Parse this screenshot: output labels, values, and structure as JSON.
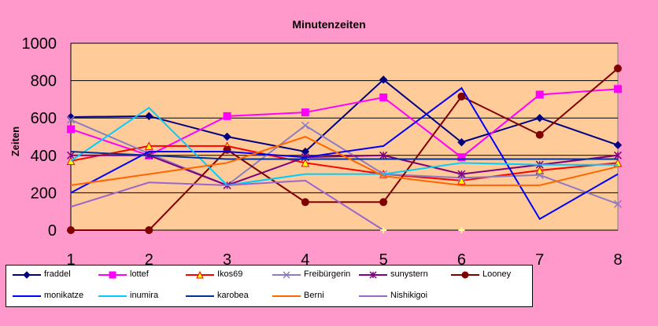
{
  "chart_data": {
    "type": "line",
    "title": "Minutenzeiten",
    "ylabel": "Zeiten",
    "xlabel": "",
    "categories": [
      "1",
      "2",
      "3",
      "4",
      "5",
      "6",
      "7",
      "8"
    ],
    "ylim": [
      0,
      1000
    ],
    "yticks": [
      "0",
      "200",
      "400",
      "600",
      "800",
      "1000"
    ],
    "grid": true,
    "legend_position": "bottom",
    "plot_background": "#ffcc99",
    "page_background": "#ff99cc",
    "series": [
      {
        "name": "fraddel",
        "color": "#000080",
        "marker": "diamond",
        "values": [
          605,
          610,
          500,
          420,
          805,
          470,
          600,
          455
        ]
      },
      {
        "name": "lottef",
        "color": "#ff00ff",
        "marker": "square",
        "values": [
          540,
          400,
          610,
          630,
          710,
          390,
          725,
          755
        ]
      },
      {
        "name": "Ikos69",
        "color": "#ff0000",
        "marker": "triangle",
        "values": [
          370,
          450,
          450,
          360,
          300,
          265,
          320,
          360
        ]
      },
      {
        "name": "Freibürgerin",
        "color": "#8e7cc3",
        "marker": "x",
        "values": [
          590,
          410,
          240,
          560,
          300,
          280,
          295,
          140
        ]
      },
      {
        "name": "sunystern",
        "color": "#800080",
        "marker": "star",
        "values": [
          400,
          400,
          240,
          390,
          400,
          300,
          350,
          400
        ]
      },
      {
        "name": "Looney",
        "color": "#800000",
        "marker": "circle",
        "values": [
          0,
          0,
          430,
          150,
          150,
          715,
          510,
          865
        ]
      },
      {
        "name": "monikatze",
        "color": "#0000ff",
        "marker": "none",
        "values": [
          200,
          420,
          420,
          390,
          450,
          760,
          60,
          300
        ]
      },
      {
        "name": "inumira",
        "color": "#00ccff",
        "marker": "none",
        "values": [
          370,
          655,
          240,
          300,
          300,
          360,
          350,
          350
        ]
      },
      {
        "name": "karobea",
        "color": "#003399",
        "marker": "none",
        "values": [
          420,
          400,
          380,
          380,
          380,
          380,
          380,
          380
        ]
      },
      {
        "name": "Berni",
        "color": "#ff6600",
        "marker": "none",
        "values": [
          240,
          300,
          360,
          500,
          290,
          240,
          240,
          340
        ]
      },
      {
        "name": "Nishikigoi",
        "color": "#9966cc",
        "marker": "none",
        "values": [
          125,
          255,
          240,
          265,
          0,
          null,
          null,
          null
        ]
      }
    ],
    "extra_points_label": "",
    "pale_markers": [
      {
        "series": "Nishikigoi",
        "x": "5",
        "y": 0
      },
      {
        "series": "Nishikigoi",
        "x": "6",
        "y": 0
      }
    ]
  }
}
